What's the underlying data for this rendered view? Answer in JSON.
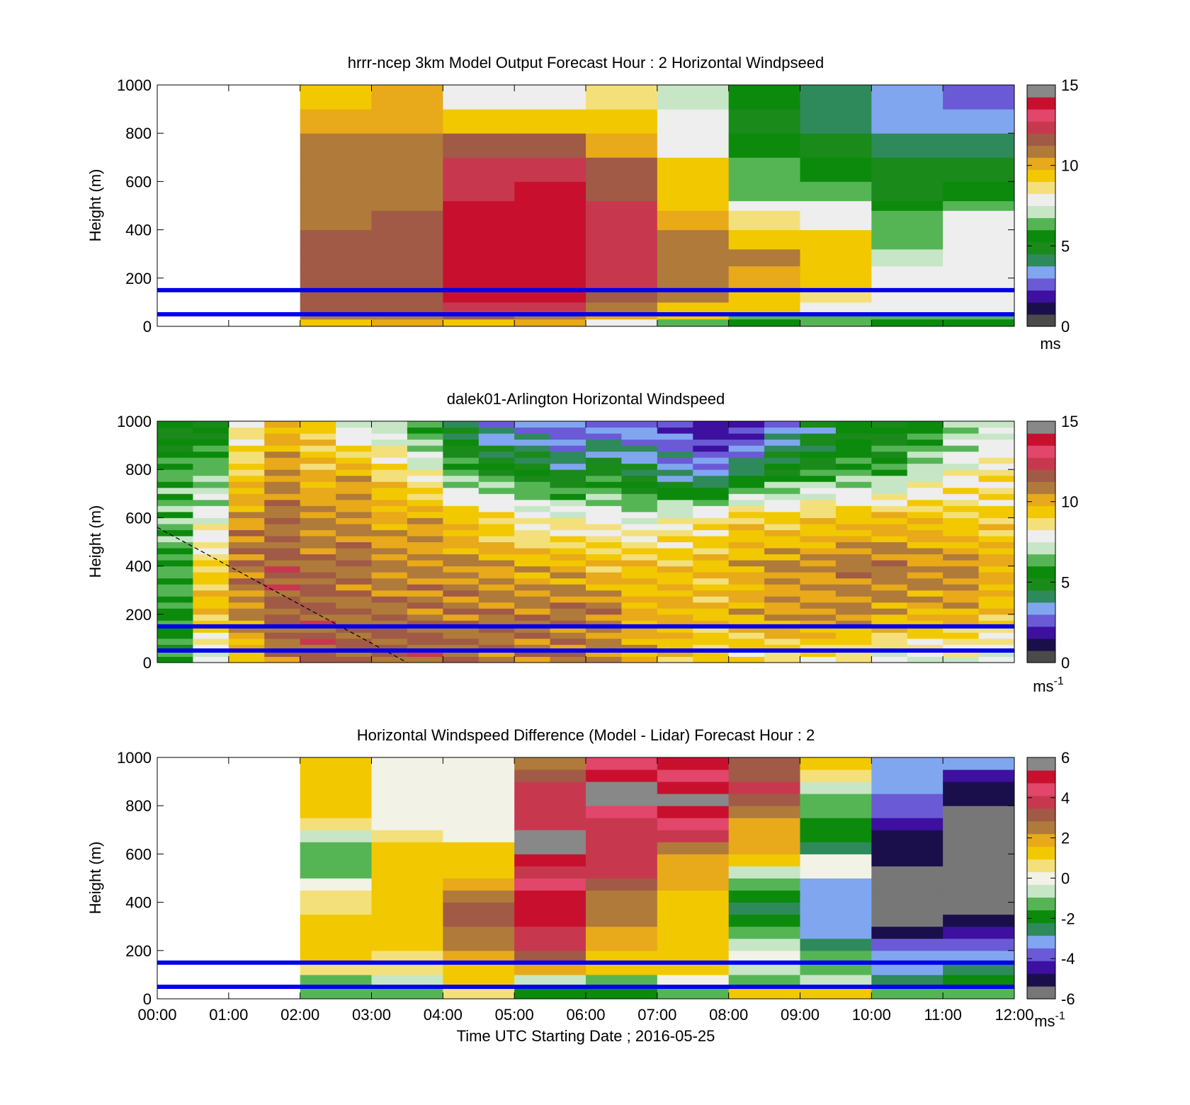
{
  "palette": {
    "speed": [
      "#4a4a4a",
      "#1a0f4a",
      "#3d10a0",
      "#6b5ad6",
      "#80a6f0",
      "#2e8a5a",
      "#1a8a1a",
      "#0c8a0c",
      "#55b555",
      "#c6e6c6",
      "#eeeeee",
      "#f4e07a",
      "#f2c800",
      "#e8a91a",
      "#b07a3a",
      "#a05a46",
      "#c7384f",
      "#e2466a",
      "#c8102e",
      "#888888"
    ],
    "diff": [
      "#777777",
      "#1a0f4a",
      "#3d10a0",
      "#6b5ad6",
      "#80a6f0",
      "#2e8a5a",
      "#0c8a0c",
      "#55b555",
      "#c6e6c6",
      "#f2f2e6",
      "#f4e07a",
      "#f2c800",
      "#e8a91a",
      "#b07a3a",
      "#a05a46",
      "#c7384f",
      "#e2466a",
      "#c8102e",
      "#888888"
    ],
    "band": "#0000ee"
  },
  "chart_data": [
    {
      "id": "model",
      "type": "heatmap",
      "title": "hrrr-ncep 3km Model Output   Forecast Hour : 2 Horizontal Windpseed",
      "ylabel": "Height (m)",
      "xlabel": "",
      "ylim": [
        0,
        1000
      ],
      "y_ticks": [
        "0",
        "200",
        "400",
        "600",
        "800",
        "1000"
      ],
      "x_ticks": [
        "",
        "",
        "",
        "",
        "",
        "",
        "",
        "",
        "",
        "",
        "",
        "",
        ""
      ],
      "colorbar": {
        "range": [
          0,
          15
        ],
        "ticks": [
          "0",
          "5",
          "10",
          "15"
        ],
        "unit": "ms",
        "unit_sup": "",
        "palette": "speed"
      },
      "bands_m": [
        50,
        150
      ],
      "hours": [
        2,
        3,
        4,
        5,
        6,
        7,
        8,
        9,
        10,
        11
      ],
      "levels_m": [
        0,
        30,
        60,
        100,
        160,
        200,
        250,
        320,
        400,
        480,
        520,
        600,
        700,
        800,
        900,
        1000
      ],
      "values": [
        [
          9.5,
          10.5,
          11.5,
          11.5,
          11.5,
          11.5,
          11.5,
          11.5,
          11,
          11,
          11,
          11,
          10.5,
          10,
          9.5
        ],
        [
          10,
          11,
          11.5,
          11.5,
          11.5,
          11.5,
          11.5,
          11.5,
          11.5,
          11,
          11,
          11,
          10.5,
          10,
          10
        ],
        [
          9.5,
          11.5,
          12.5,
          13.5,
          13.5,
          13.5,
          13.5,
          13.5,
          13.5,
          13.5,
          12.5,
          12.5,
          11.5,
          9.5,
          7.5
        ],
        [
          10,
          11,
          12,
          13.5,
          14,
          14,
          14,
          14,
          14,
          14,
          13.5,
          12.5,
          11.5,
          9.5,
          8
        ],
        [
          8,
          10,
          11,
          11.5,
          12,
          12,
          12.5,
          12.5,
          12.5,
          12,
          11.5,
          11.5,
          10,
          9.5,
          8.5
        ],
        [
          6.5,
          9,
          9.5,
          10.5,
          11,
          11,
          11,
          11,
          10,
          9.5,
          9,
          9,
          8,
          7.5,
          7
        ],
        [
          5.5,
          6.5,
          9,
          9,
          10,
          10,
          10.5,
          9.5,
          8.5,
          8,
          6.5,
          6,
          5.5,
          4.5,
          5.5
        ],
        [
          6,
          6.5,
          7.5,
          8.5,
          9,
          9,
          9,
          9,
          8,
          7.5,
          6.5,
          5.5,
          4.8,
          4,
          4
        ],
        [
          5.5,
          6.5,
          7.5,
          8,
          8,
          7.5,
          7,
          6.5,
          6,
          5.5,
          5,
          5,
          4,
          3.5,
          3.2
        ],
        [
          5.5,
          6.5,
          7.5,
          7.5,
          8,
          8,
          8,
          8,
          7.5,
          6.5,
          5.5,
          5,
          4.3,
          3.2,
          2.8
        ]
      ]
    },
    {
      "id": "lidar",
      "type": "heatmap",
      "title": "dalek01-Arlington  Horizontal Windspeed",
      "ylabel": "Height (m)",
      "xlabel": "",
      "ylim": [
        0,
        1000
      ],
      "y_ticks": [
        "0",
        "200",
        "400",
        "600",
        "800",
        "1000"
      ],
      "x_ticks": [
        "",
        "",
        "",
        "",
        "",
        "",
        "",
        "",
        "",
        "",
        "",
        "",
        ""
      ],
      "colorbar": {
        "range": [
          0,
          15
        ],
        "ticks": [
          "0",
          "5",
          "10",
          "15"
        ],
        "unit": "ms",
        "unit_sup": "-1",
        "palette": "speed"
      },
      "bands_m": [
        50,
        150
      ],
      "profile_times_h": [
        0.0,
        0.5,
        1.0,
        1.5,
        2.0,
        2.5,
        3.0,
        3.5,
        4.0,
        4.5,
        5.0,
        5.5,
        6.0,
        6.5,
        7.0,
        7.5,
        8.0,
        8.5,
        9.0,
        9.5,
        10.0,
        10.5,
        11.0,
        11.5
      ],
      "profile_levels_m": [
        0,
        200,
        400,
        600,
        800,
        1000
      ],
      "profiles": [
        [
          5.5,
          6,
          6,
          6.5,
          6,
          5
        ],
        [
          7.5,
          9.5,
          9,
          7.5,
          6.5,
          5
        ],
        [
          9.5,
          10.5,
          11,
          10.5,
          9,
          8
        ],
        [
          11,
          11.5,
          11.5,
          11,
          10.5,
          9.5
        ],
        [
          11.5,
          11.5,
          11,
          10.5,
          9.5,
          9
        ],
        [
          11.5,
          11,
          11,
          10.5,
          10,
          7
        ],
        [
          11.5,
          11,
          10.5,
          10,
          9,
          7
        ],
        [
          11.5,
          11,
          10.5,
          10,
          8,
          5.5
        ],
        [
          11,
          11,
          10.5,
          9.5,
          6,
          4
        ],
        [
          11,
          11,
          10,
          9,
          5.5,
          3
        ],
        [
          11,
          11,
          10,
          8,
          5,
          3
        ],
        [
          11,
          11,
          10,
          8,
          4,
          2.5
        ],
        [
          10.5,
          11,
          9.5,
          8,
          5,
          2.5
        ],
        [
          10,
          10,
          9.5,
          7.5,
          4,
          3
        ],
        [
          9.5,
          10,
          9.5,
          8,
          3.5,
          2.5
        ],
        [
          9,
          9.5,
          9.5,
          8.5,
          3,
          1.5
        ],
        [
          8.5,
          10,
          10,
          9.5,
          4,
          2
        ],
        [
          8.5,
          10.5,
          10.5,
          9,
          5,
          3
        ],
        [
          8.5,
          10.5,
          10.5,
          9.5,
          5.5,
          4
        ],
        [
          8,
          10.5,
          11,
          9.5,
          6,
          5
        ],
        [
          7.5,
          10,
          11,
          9.5,
          6,
          5
        ],
        [
          7.5,
          10,
          10.5,
          9.5,
          7,
          5.5
        ],
        [
          7.5,
          10,
          10.5,
          9,
          8,
          6.5
        ],
        [
          7,
          9.5,
          10,
          9,
          8.5,
          7
        ]
      ],
      "dashed_line_h": [
        [
          0.0,
          560
        ],
        [
          3.5,
          0
        ]
      ]
    },
    {
      "id": "diff",
      "type": "heatmap",
      "title": "Horizontal Windspeed Difference (Model - Lidar) Forecast Hour : 2",
      "ylabel": "Height (m)",
      "xlabel": "Time UTC  Starting Date ; 2016-05-25",
      "ylim": [
        0,
        1000
      ],
      "y_ticks": [
        "0",
        "200",
        "400",
        "600",
        "800",
        "1000"
      ],
      "x_ticks": [
        "00:00",
        "01:00",
        "02:00",
        "03:00",
        "04:00",
        "05:00",
        "06:00",
        "07:00",
        "08:00",
        "09:00",
        "10:00",
        "11:00",
        "12:00"
      ],
      "colorbar": {
        "range": [
          -6,
          6
        ],
        "ticks": [
          "-6",
          "-4",
          "-2",
          "0",
          "2",
          "4",
          "6"
        ],
        "unit": "ms",
        "unit_sup": "-1",
        "palette": "diff"
      },
      "bands_m": [
        50,
        150
      ],
      "hours": [
        2,
        3,
        4,
        5,
        6,
        7,
        8,
        9,
        10,
        11
      ],
      "values": [
        [
          -1,
          -1,
          0.5,
          1,
          1,
          1,
          1,
          0.8,
          0.5,
          0,
          -1,
          -1,
          -1,
          -0.5,
          0.5,
          1.5,
          1.5,
          1.5,
          1.5,
          1.5
        ],
        [
          -1,
          -0.5,
          0.5,
          0.8,
          1.2,
          1.5,
          1.5,
          1.5,
          1.5,
          1.5,
          1.5,
          1.2,
          1,
          0.5,
          0,
          0,
          0,
          0,
          0,
          0
        ],
        [
          0.5,
          1.5,
          1.5,
          2,
          2.5,
          2.5,
          3,
          3,
          2.5,
          2,
          1.5,
          1.5,
          1.5,
          0,
          0,
          0,
          0,
          0,
          0,
          0
        ],
        [
          -2,
          -0.5,
          2,
          3,
          3.5,
          3.5,
          5,
          5,
          5,
          4.5,
          4,
          5,
          5.5,
          5.5,
          4,
          4,
          3.5,
          3.5,
          3,
          2.5
        ],
        [
          -2,
          -1,
          1.5,
          1.5,
          2,
          2,
          2.5,
          2.5,
          2.5,
          3,
          3.5,
          3.5,
          3.5,
          3.5,
          3.5,
          4.5,
          5.5,
          5.5,
          5,
          4.5
        ],
        [
          -1,
          0,
          1,
          1.5,
          1.5,
          1.5,
          1,
          1,
          1.5,
          2,
          2,
          2,
          2.5,
          3.5,
          4.5,
          5,
          5.5,
          5,
          4.5,
          5
        ],
        [
          1,
          -1,
          -0.5,
          0,
          -0.5,
          -1.5,
          -2,
          -2.5,
          -2,
          -1.5,
          -0.5,
          1.5,
          2,
          2,
          2,
          2.5,
          3,
          3.5,
          3,
          3
        ],
        [
          1.5,
          -0.5,
          -1,
          -1,
          -2.5,
          -3,
          -3,
          -3,
          -3,
          -3,
          0,
          0,
          -2.5,
          -2,
          -2,
          -1.5,
          -1,
          -0.5,
          0.5,
          1.5
        ],
        [
          -1.5,
          -2.5,
          -3,
          -3,
          -4,
          -5,
          -5.5,
          -6,
          -6,
          -6,
          -5.5,
          -5,
          -5,
          -5,
          -4.5,
          -4,
          -3.5,
          -3,
          -3,
          -3
        ],
        [
          -1,
          -2,
          -2.5,
          -3,
          -3.5,
          -4.5,
          -5,
          -5.5,
          -5.5,
          -5.5,
          -5.5,
          -5.5,
          -6,
          -6,
          -5.5,
          -5.5,
          -5,
          -5,
          -4.5,
          -3
        ]
      ]
    }
  ]
}
